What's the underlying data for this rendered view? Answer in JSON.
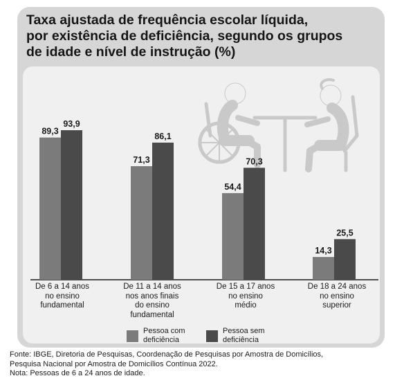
{
  "title_lines": [
    "Taxa ajustada de frequência escolar líquida,",
    "por existência de deficiência, segundo os grupos",
    "de idade e nível de instrução (%)"
  ],
  "colors": {
    "card_bg": "#d6d6d6",
    "panel_bg": "#f0f0f0",
    "com_deficiencia": "#7b7b7b",
    "sem_deficiencia": "#4a4a4a",
    "illustration": "#c9c9c9"
  },
  "illustration": {
    "icon": "wheelchair-user-and-person-at-desk-icon"
  },
  "chart_data": {
    "type": "bar",
    "categories": [
      [
        "De 6 a 14 anos",
        "no ensino",
        "fundamental"
      ],
      [
        "De 11 a 14 anos",
        "nos anos finais",
        "do ensino",
        "fundamental"
      ],
      [
        "De 15 a 17 anos",
        "no ensino",
        "médio"
      ],
      [
        "De 18 a 24 anos",
        "no ensino",
        "superior"
      ]
    ],
    "series": [
      {
        "name": [
          "Pessoa com",
          "deficiência"
        ],
        "values": [
          89.3,
          71.3,
          54.4,
          14.3
        ],
        "labels": [
          "89,3",
          "71,3",
          "54,4",
          "14,3"
        ],
        "color": "#7b7b7b"
      },
      {
        "name": [
          "Pessoa sem",
          "deficiência"
        ],
        "values": [
          93.9,
          86.1,
          70.3,
          25.5
        ],
        "labels": [
          "93,9",
          "86,1",
          "70,3",
          "25,5"
        ],
        "color": "#4a4a4a"
      }
    ],
    "ylim": [
      0,
      100
    ],
    "grid": false,
    "legend": "bottom-center"
  },
  "footer_lines": [
    "Fonte: IBGE, Diretoria de Pesquisas, Coordenação de Pesquisas por Amostra de Domicílios,",
    "Pesquisa Nacional por Amostra de Domicílios Contínua 2022.",
    "Nota: Pessoas de 6 a 24 anos de idade."
  ]
}
